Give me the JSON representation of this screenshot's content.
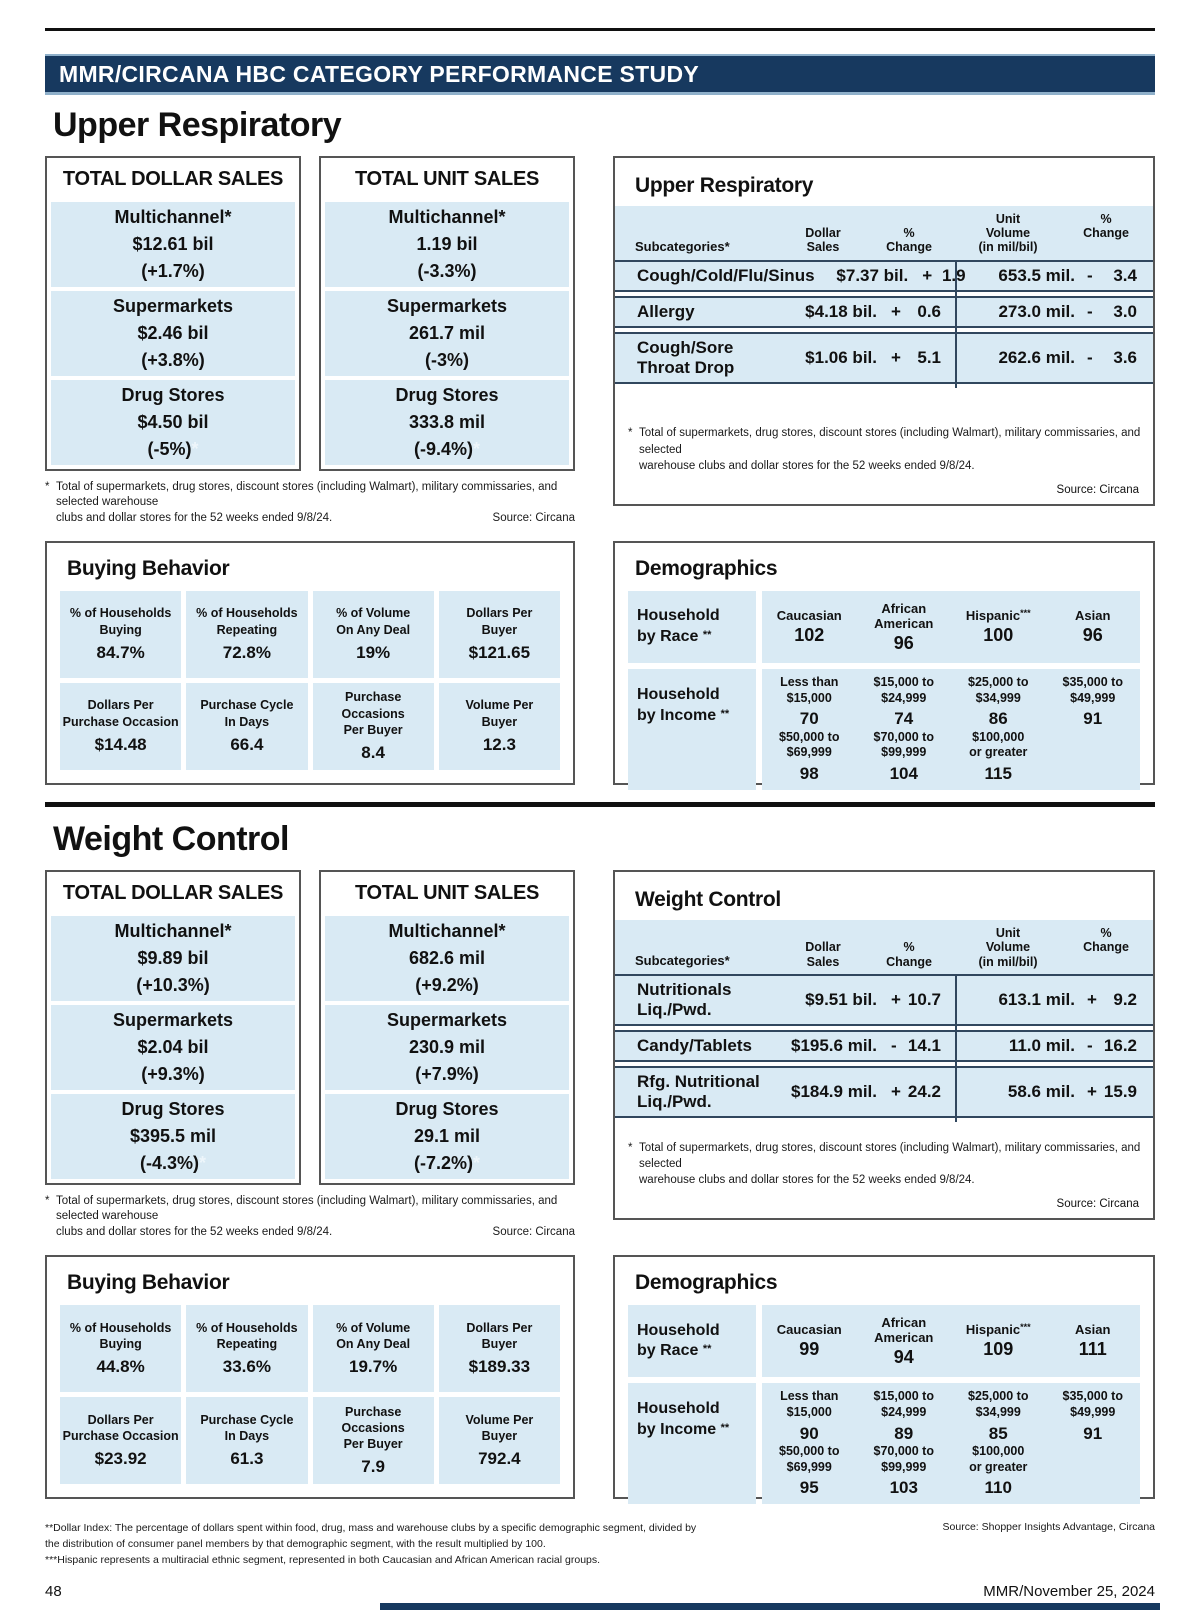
{
  "banner_title": "MMR/CIRCANA HBC CATEGORY PERFORMANCE STUDY",
  "colors": {
    "navy": "#17395f",
    "light_blue": "#d9eaf4"
  },
  "sections": [
    {
      "title": "Upper Respiratory",
      "dollar_sales": {
        "title": "TOTAL DOLLAR SALES",
        "channels": [
          {
            "label": "Multichannel",
            "label_mark": "*",
            "value": "$12.61 bil",
            "change": "(+1.7%)",
            "change_mark": ""
          },
          {
            "label": "Supermarkets",
            "label_mark": "",
            "value": "$2.46 bil",
            "change": "(+3.8%)",
            "change_mark": ""
          },
          {
            "label": "Drug Stores",
            "label_mark": "",
            "value": "$4.50 bil",
            "change": "(-5%)",
            "change_mark": "*"
          }
        ]
      },
      "unit_sales": {
        "title": "TOTAL UNIT SALES",
        "channels": [
          {
            "label": "Multichannel",
            "label_mark": "*",
            "value": "1.19 bil",
            "change": "(-3.3%)",
            "change_mark": ""
          },
          {
            "label": "Supermarkets",
            "label_mark": "",
            "value": "261.7 mil",
            "change": "(-3%)",
            "change_mark": ""
          },
          {
            "label": "Drug Stores",
            "label_mark": "",
            "value": "333.8 mil",
            "change": "(-9.4%)",
            "change_mark": "*"
          }
        ]
      },
      "sales_footnote_line1": "Total of supermarkets, drug stores, discount stores (including Walmart), military commissaries, and selected warehouse",
      "sales_footnote_line2": "clubs and dollar stores for the 52 weeks ended 9/8/24.",
      "sales_footnote_source": "Source: Circana",
      "subcat": {
        "title": "Upper Respiratory",
        "col_headers": {
          "sub": "Subcategories*",
          "d1": "Dollar",
          "d2": "Sales",
          "c1a": "%",
          "c1b": "Change",
          "u1": "Unit",
          "u2": "Volume",
          "u3": "(in mil/bil)",
          "c2a": "%",
          "c2b": "Change"
        },
        "rows": [
          {
            "name": "Cough/Cold/Flu/Sinus",
            "dollar": "$7.37 bil.",
            "d_sign": "+",
            "d_pct": "1.9",
            "unit": "653.5 mil.",
            "u_sign": "-",
            "u_pct": "3.4"
          },
          {
            "name": "Allergy",
            "dollar": "$4.18 bil.",
            "d_sign": "+",
            "d_pct": "0.6",
            "unit": "273.0 mil.",
            "u_sign": "-",
            "u_pct": "3.0"
          },
          {
            "name": "Cough/Sore Throat Drop",
            "dollar": "$1.06 bil.",
            "d_sign": "+",
            "d_pct": "5.1",
            "unit": "262.6 mil.",
            "u_sign": "-",
            "u_pct": "3.6"
          }
        ],
        "footnote_line1": "Total of supermarkets, drug stores, discount stores (including Walmart), military commissaries, and selected",
        "footnote_line2": "warehouse clubs and dollar stores for the 52 weeks ended 9/8/24.",
        "source": "Source: Circana"
      },
      "buying": {
        "title": "Buying Behavior",
        "cells": [
          {
            "l1": "% of Households",
            "l2": "Buying",
            "value": "84.7%"
          },
          {
            "l1": "% of Households",
            "l2": "Repeating",
            "value": "72.8%"
          },
          {
            "l1": "% of Volume",
            "l2": "On Any Deal",
            "value": "19%"
          },
          {
            "l1": "Dollars Per",
            "l2": "Buyer",
            "value": "$121.65"
          },
          {
            "l1": "Dollars Per",
            "l2": "Purchase Occasion",
            "value": "$14.48"
          },
          {
            "l1": "Purchase Cycle",
            "l2": "In Days",
            "value": "66.4"
          },
          {
            "l1": "Purchase Occasions",
            "l2": "Per Buyer",
            "value": "8.4"
          },
          {
            "l1": "Volume Per",
            "l2": "Buyer",
            "value": "12.3"
          }
        ]
      },
      "demographics": {
        "title": "Demographics",
        "race_label_l1": "Household",
        "race_label_l2": "by Race",
        "race_mark": "**",
        "race_cols": [
          {
            "name": "Caucasian",
            "mark": "",
            "value": "102"
          },
          {
            "name": "African American",
            "mark": "",
            "value": "96"
          },
          {
            "name": "Hispanic",
            "mark": "***",
            "value": "100"
          },
          {
            "name": "Asian",
            "mark": "",
            "value": "96"
          }
        ],
        "income_label_l1": "Household",
        "income_label_l2": "by Income",
        "income_mark": "**",
        "income_rows": [
          [
            {
              "r1": "Less than",
              "r2": "$15,000",
              "value": "70"
            },
            {
              "r1": "$15,000 to",
              "r2": "$24,999",
              "value": "74"
            },
            {
              "r1": "$25,000 to",
              "r2": "$34,999",
              "value": "86"
            },
            {
              "r1": "$35,000 to",
              "r2": "$49,999",
              "value": "91"
            }
          ],
          [
            {
              "r1": "$50,000 to",
              "r2": "$69,999",
              "value": "98"
            },
            {
              "r1": "$70,000 to",
              "r2": "$99,999",
              "value": "104"
            },
            {
              "r1": "$100,000",
              "r2": "or greater",
              "value": "115"
            }
          ]
        ]
      }
    },
    {
      "title": "Weight Control",
      "dollar_sales": {
        "title": "TOTAL DOLLAR SALES",
        "channels": [
          {
            "label": "Multichannel",
            "label_mark": "*",
            "value": "$9.89 bil",
            "change": "(+10.3%)",
            "change_mark": ""
          },
          {
            "label": "Supermarkets",
            "label_mark": "",
            "value": "$2.04 bil",
            "change": "(+9.3%)",
            "change_mark": ""
          },
          {
            "label": "Drug Stores",
            "label_mark": "",
            "value": "$395.5 mil",
            "change": "(-4.3%)",
            "change_mark": "*"
          }
        ]
      },
      "unit_sales": {
        "title": "TOTAL UNIT SALES",
        "channels": [
          {
            "label": "Multichannel",
            "label_mark": "*",
            "value": "682.6 mil",
            "change": "(+9.2%)",
            "change_mark": ""
          },
          {
            "label": "Supermarkets",
            "label_mark": "",
            "value": "230.9 mil",
            "change": "(+7.9%)",
            "change_mark": ""
          },
          {
            "label": "Drug Stores",
            "label_mark": "",
            "value": "29.1 mil",
            "change": "(-7.2%)",
            "change_mark": "*"
          }
        ]
      },
      "sales_footnote_line1": "Total of supermarkets, drug stores, discount stores (including Walmart), military commissaries, and selected warehouse",
      "sales_footnote_line2": "clubs and dollar stores for the 52 weeks ended 9/8/24.",
      "sales_footnote_source": "Source: Circana",
      "subcat": {
        "title": "Weight Control",
        "col_headers": {
          "sub": "Subcategories*",
          "d1": "Dollar",
          "d2": "Sales",
          "c1a": "%",
          "c1b": "Change",
          "u1": "Unit",
          "u2": "Volume",
          "u3": "(in mil/bil)",
          "c2a": "%",
          "c2b": "Change"
        },
        "rows": [
          {
            "name": "Nutritionals Liq./Pwd.",
            "dollar": "$9.51 bil.",
            "d_sign": "+",
            "d_pct": "10.7",
            "unit": "613.1 mil.",
            "u_sign": "+",
            "u_pct": "9.2"
          },
          {
            "name": "Candy/Tablets",
            "dollar": "$195.6 mil.",
            "d_sign": "-",
            "d_pct": "14.1",
            "unit": "11.0 mil.",
            "u_sign": "-",
            "u_pct": "16.2"
          },
          {
            "name": "Rfg. Nutritional Liq./Pwd.",
            "dollar": "$184.9 mil.",
            "d_sign": "+",
            "d_pct": "24.2",
            "unit": "58.6 mil.",
            "u_sign": "+",
            "u_pct": "15.9"
          }
        ],
        "footnote_line1": "Total of supermarkets, drug stores, discount stores (including Walmart), military commissaries, and selected",
        "footnote_line2": "warehouse clubs and dollar stores for the 52 weeks ended 9/8/24.",
        "source": "Source: Circana"
      },
      "buying": {
        "title": "Buying Behavior",
        "cells": [
          {
            "l1": "% of Households",
            "l2": "Buying",
            "value": "44.8%"
          },
          {
            "l1": "% of Households",
            "l2": "Repeating",
            "value": "33.6%"
          },
          {
            "l1": "% of Volume",
            "l2": "On Any Deal",
            "value": "19.7%"
          },
          {
            "l1": "Dollars Per",
            "l2": "Buyer",
            "value": "$189.33"
          },
          {
            "l1": "Dollars Per",
            "l2": "Purchase Occasion",
            "value": "$23.92"
          },
          {
            "l1": "Purchase Cycle",
            "l2": "In Days",
            "value": "61.3"
          },
          {
            "l1": "Purchase Occasions",
            "l2": "Per Buyer",
            "value": "7.9"
          },
          {
            "l1": "Volume Per",
            "l2": "Buyer",
            "value": "792.4"
          }
        ]
      },
      "demographics": {
        "title": "Demographics",
        "race_label_l1": "Household",
        "race_label_l2": "by Race",
        "race_mark": "**",
        "race_cols": [
          {
            "name": "Caucasian",
            "mark": "",
            "value": "99"
          },
          {
            "name": "African American",
            "mark": "",
            "value": "94"
          },
          {
            "name": "Hispanic",
            "mark": "***",
            "value": "109"
          },
          {
            "name": "Asian",
            "mark": "",
            "value": "111"
          }
        ],
        "income_label_l1": "Household",
        "income_label_l2": "by Income",
        "income_mark": "**",
        "income_rows": [
          [
            {
              "r1": "Less than",
              "r2": "$15,000",
              "value": "90"
            },
            {
              "r1": "$15,000 to",
              "r2": "$24,999",
              "value": "89"
            },
            {
              "r1": "$25,000 to",
              "r2": "$34,999",
              "value": "85"
            },
            {
              "r1": "$35,000 to",
              "r2": "$49,999",
              "value": "91"
            }
          ],
          [
            {
              "r1": "$50,000 to",
              "r2": "$69,999",
              "value": "95"
            },
            {
              "r1": "$70,000 to",
              "r2": "$99,999",
              "value": "103"
            },
            {
              "r1": "$100,000",
              "r2": "or greater",
              "value": "110"
            }
          ]
        ]
      }
    }
  ],
  "page_notes": {
    "dollar_index_line1": "**Dollar Index: The percentage of dollars spent within food, drug, mass and warehouse clubs by a specific demographic segment, divided by",
    "dollar_index_line2": "the distribution of consumer panel members by that demographic segment, with the result multiplied by 100.",
    "hispanic_note": "***Hispanic represents a multiracial ethnic segment, represented in both Caucasian and African American racial groups.",
    "source_right": "Source: Shopper Insights Advantage, Circana"
  },
  "footer": {
    "page_number": "48",
    "issue": "MMR/November 25, 2024"
  }
}
